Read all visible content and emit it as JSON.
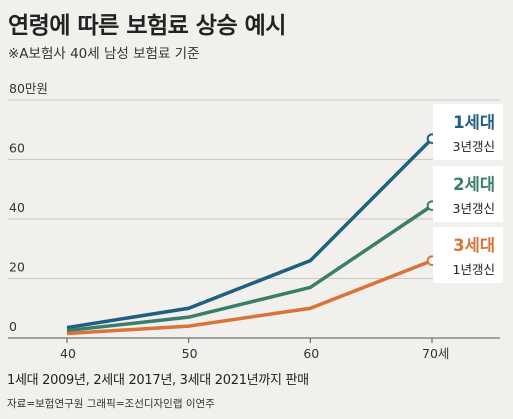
{
  "title": "연령에 따른 보험료 상승 예시",
  "subtitle": "※A보험사 40세 남성 보험료 기준",
  "footnote": "1세대 2009년, 2세대 2017년, 3세대 2021년까지 판매",
  "source": "자료=보험연구원   그래픽=조선디자인랩 이연주",
  "chart_data": {
    "type": "line",
    "x": [
      40,
      50,
      60,
      70
    ],
    "x_tick_labels": [
      "40",
      "50",
      "60",
      "70세"
    ],
    "y_tick_labels": [
      "0",
      "20",
      "40",
      "60",
      "80만원"
    ],
    "ylim": [
      0,
      80
    ],
    "grid": true,
    "series": [
      {
        "name": "1세대",
        "tag": "3년갱신",
        "color": "#1f5f82",
        "values": [
          3.5,
          10,
          26,
          67
        ]
      },
      {
        "name": "2세대",
        "tag": "3년갱신",
        "color": "#3a7d6a",
        "values": [
          2.5,
          7,
          17,
          44.5
        ]
      },
      {
        "name": "3세대",
        "tag": "1년갱신",
        "color": "#d9733a",
        "values": [
          1.5,
          4,
          10,
          26
        ]
      }
    ]
  }
}
